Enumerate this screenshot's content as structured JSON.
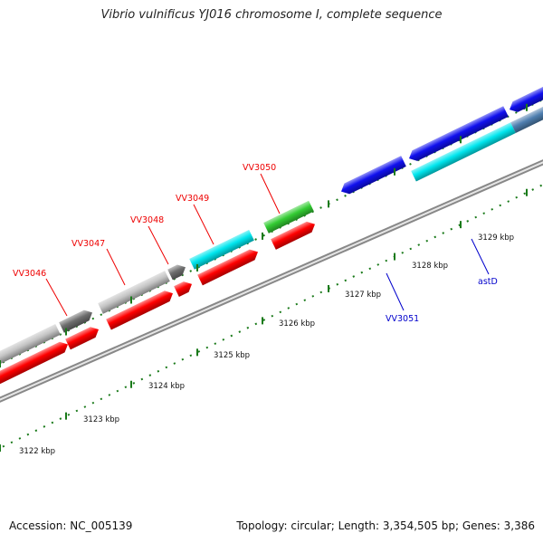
{
  "title": "Vibrio vulnificus YJ016 chromosome I, complete sequence",
  "footer": {
    "accession": "Accession: NC_005139",
    "summary": "Topology: circular; Length: 3,354,505 bp; Genes: 3,386"
  },
  "colors": {
    "forward_red": "#ff0000",
    "light_gray": "#c4c4c4",
    "dark_gray": "#6e6e6e",
    "cyan": "#00e6ee",
    "green": "#33cc33",
    "blue": "#1010ee",
    "steel_blue": "#4f7fb0",
    "ruler": "#1a7a1a",
    "label_red": "#ee0000",
    "label_blue": "#0000cc"
  },
  "chart_data": {
    "type": "genome-map",
    "units": "kbp",
    "ruler_labels": [
      {
        "kbp": 3122,
        "text": "3122 kbp"
      },
      {
        "kbp": 3123,
        "text": "3123 kbp"
      },
      {
        "kbp": 3124,
        "text": "3124 kbp"
      },
      {
        "kbp": 3125,
        "text": "3125 kbp"
      },
      {
        "kbp": 3126,
        "text": "3126 kbp"
      },
      {
        "kbp": 3127,
        "text": "3127 kbp"
      },
      {
        "kbp": 3128,
        "text": "3128 kbp"
      },
      {
        "kbp": 3129,
        "text": "3129 kbp"
      }
    ],
    "gene_labels": [
      {
        "text": "VV3046",
        "color": "label_red"
      },
      {
        "text": "VV3047",
        "color": "label_red"
      },
      {
        "text": "VV3048",
        "color": "label_red"
      },
      {
        "text": "VV3049",
        "color": "label_red"
      },
      {
        "text": "VV3050",
        "color": "label_red"
      },
      {
        "text": "VV3051",
        "color": "label_blue"
      },
      {
        "text": "astD",
        "color": "label_blue"
      }
    ]
  }
}
